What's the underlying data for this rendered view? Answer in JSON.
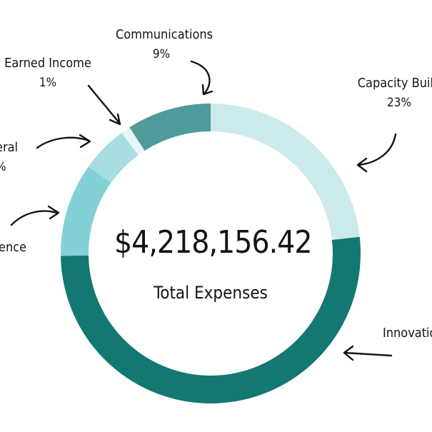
{
  "chart_data": {
    "type": "pie",
    "style": "donut",
    "center_value": "$4,218,156.42",
    "center_caption": "Total Expenses",
    "slices": [
      {
        "label": "Capacity Build",
        "percent_text": "23%",
        "value": 23,
        "color": "#cceaec"
      },
      {
        "label": "Innovatio",
        "percent_text": "",
        "value": 51,
        "color": "#137772"
      },
      {
        "label": "ence",
        "percent_text": "",
        "value": 10,
        "color": "#83d1d6"
      },
      {
        "label": "eral",
        "percent_text": "%",
        "value": 5,
        "color": "#a7dde0"
      },
      {
        "label": "Earned Income",
        "percent_text": "1%",
        "value": 1,
        "color": "#e8f5f6"
      },
      {
        "label": "Communications",
        "percent_text": "9%",
        "value": 9,
        "color": "#4f9b9b"
      }
    ]
  }
}
